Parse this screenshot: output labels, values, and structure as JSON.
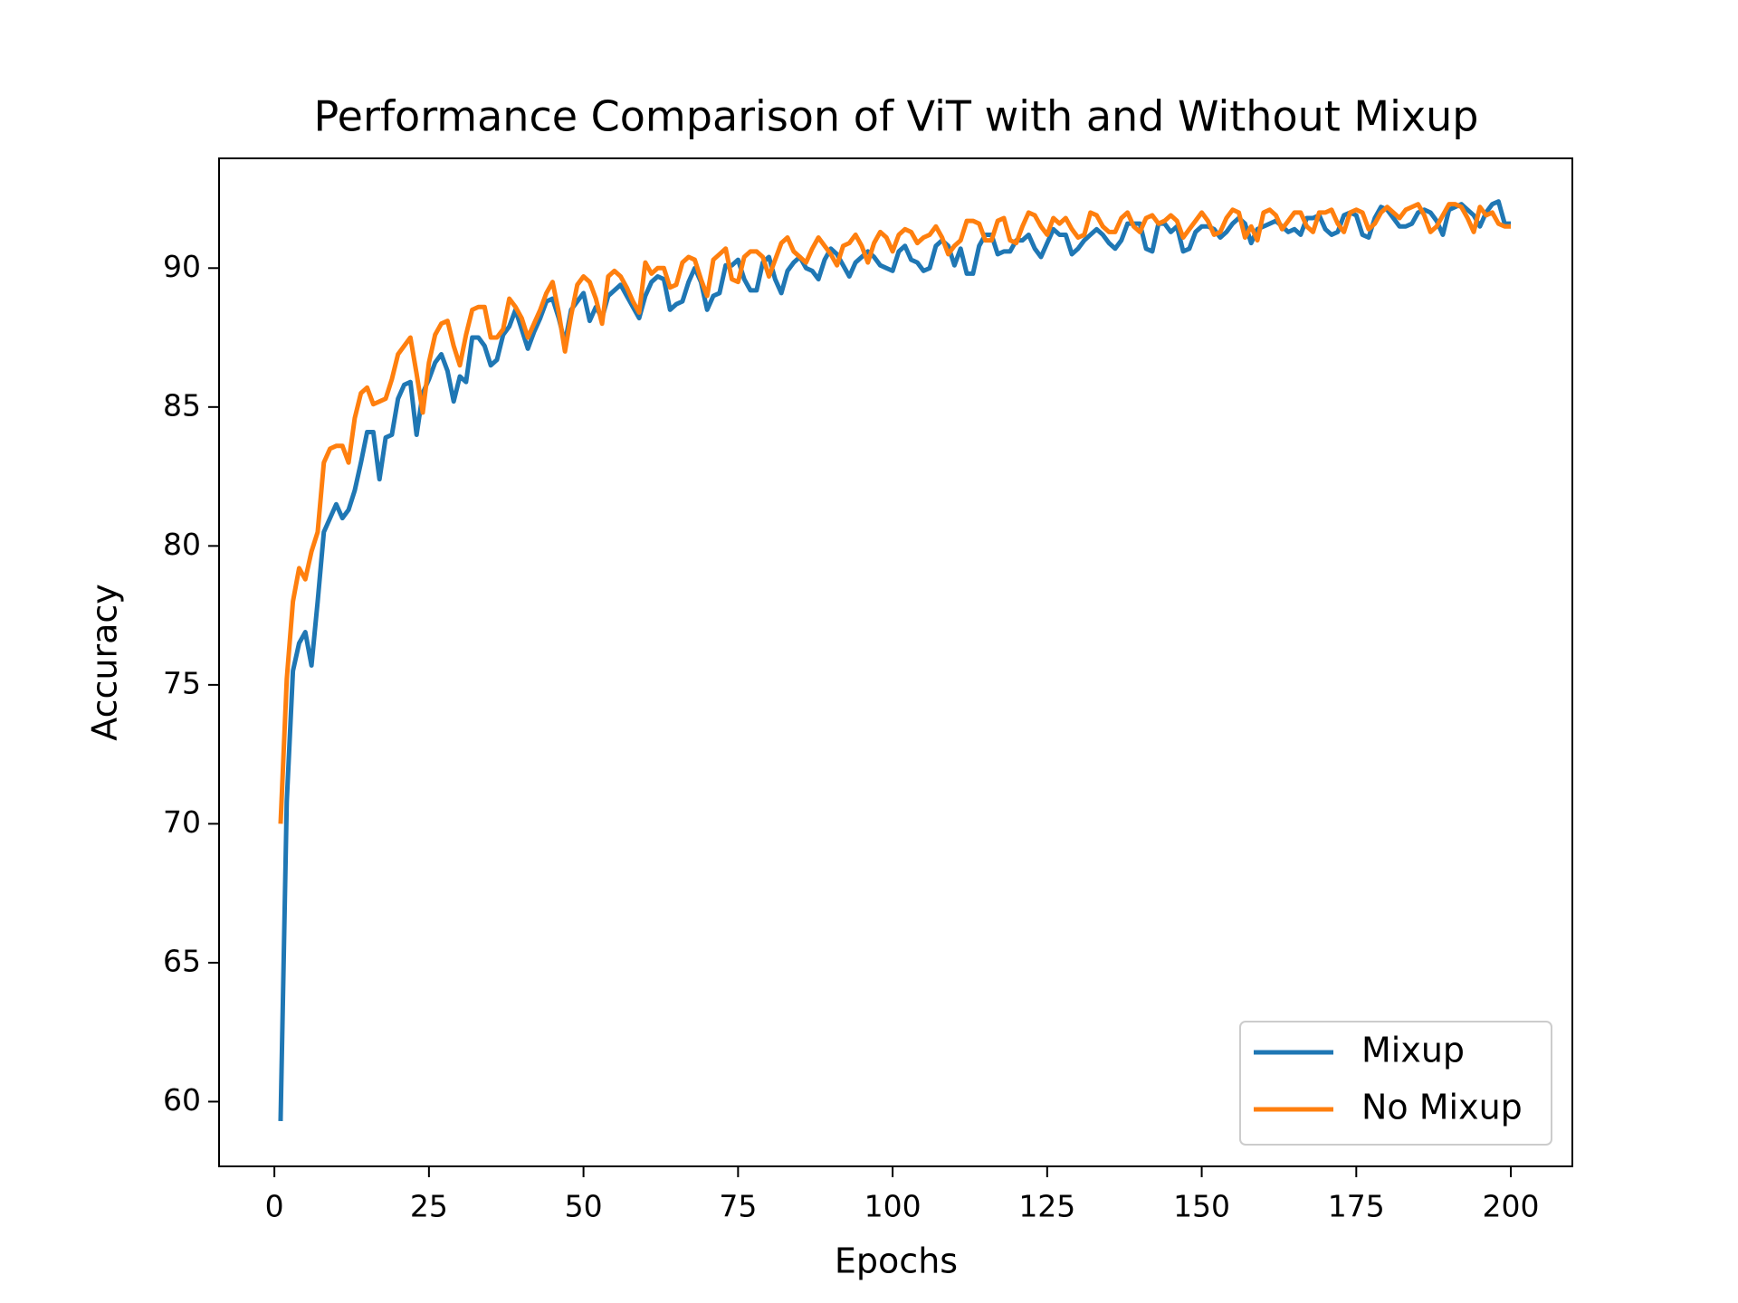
{
  "chart_data": {
    "type": "line",
    "title": "Performance Comparison of ViT with and Without Mixup",
    "x_label": "Epochs",
    "y_label": "Accuracy",
    "x": [
      1,
      2,
      3,
      4,
      5,
      6,
      7,
      8,
      9,
      10,
      11,
      12,
      13,
      14,
      15,
      16,
      17,
      18,
      19,
      20,
      21,
      22,
      23,
      24,
      25,
      26,
      27,
      28,
      29,
      30,
      31,
      32,
      33,
      34,
      35,
      36,
      37,
      38,
      39,
      40,
      41,
      42,
      43,
      44,
      45,
      46,
      47,
      48,
      49,
      50,
      51,
      52,
      53,
      54,
      55,
      56,
      57,
      58,
      59,
      60,
      61,
      62,
      63,
      64,
      65,
      66,
      67,
      68,
      69,
      70,
      71,
      72,
      73,
      74,
      75,
      76,
      77,
      78,
      79,
      80,
      81,
      82,
      83,
      84,
      85,
      86,
      87,
      88,
      89,
      90,
      91,
      92,
      93,
      94,
      95,
      96,
      97,
      98,
      99,
      100,
      101,
      102,
      103,
      104,
      105,
      106,
      107,
      108,
      109,
      110,
      111,
      112,
      113,
      114,
      115,
      116,
      117,
      118,
      119,
      120,
      121,
      122,
      123,
      124,
      125,
      126,
      127,
      128,
      129,
      130,
      131,
      132,
      133,
      134,
      135,
      136,
      137,
      138,
      139,
      140,
      141,
      142,
      143,
      144,
      145,
      146,
      147,
      148,
      149,
      150,
      151,
      152,
      153,
      154,
      155,
      156,
      157,
      158,
      159,
      160,
      161,
      162,
      163,
      164,
      165,
      166,
      167,
      168,
      169,
      170,
      171,
      172,
      173,
      174,
      175,
      176,
      177,
      178,
      179,
      180,
      181,
      182,
      183,
      184,
      185,
      186,
      187,
      188,
      189,
      190,
      191,
      192,
      193,
      194,
      195,
      196,
      197,
      198,
      199,
      200
    ],
    "series": [
      {
        "name": "Mixup",
        "color": "#1f77b4",
        "values": [
          59.3,
          70.8,
          75.5,
          76.5,
          76.9,
          75.7,
          78,
          80.5,
          81,
          81.5,
          81,
          81.3,
          82,
          83,
          84.1,
          84.1,
          82.4,
          83.9,
          84,
          85.3,
          85.8,
          85.9,
          84,
          85.5,
          86,
          86.6,
          86.9,
          86.3,
          85.2,
          86.1,
          85.9,
          87.5,
          87.5,
          87.2,
          86.5,
          86.7,
          87.6,
          87.9,
          88.5,
          87.8,
          87.1,
          87.7,
          88.2,
          88.8,
          88.9,
          88.2,
          87.3,
          88.5,
          88.8,
          89.1,
          88.1,
          88.6,
          88.2,
          89,
          89.2,
          89.4,
          89,
          88.6,
          88.2,
          89,
          89.5,
          89.7,
          89.6,
          88.5,
          88.7,
          88.8,
          89.5,
          90,
          89.5,
          88.5,
          89,
          89.1,
          90.1,
          90.1,
          90.3,
          89.6,
          89.2,
          89.2,
          90.2,
          90.4,
          89.6,
          89.1,
          89.9,
          90.2,
          90.4,
          90,
          89.9,
          89.6,
          90.3,
          90.7,
          90.5,
          90.1,
          89.7,
          90.2,
          90.4,
          90.6,
          90.4,
          90.1,
          90,
          89.9,
          90.6,
          90.8,
          90.3,
          90.2,
          89.9,
          90,
          90.8,
          91,
          90.8,
          90.1,
          90.7,
          89.8,
          89.8,
          90.8,
          91.2,
          91.2,
          90.5,
          90.6,
          90.6,
          91,
          91,
          91.2,
          90.7,
          90.4,
          90.9,
          91.4,
          91.2,
          91.2,
          90.5,
          90.7,
          91,
          91.2,
          91.4,
          91.2,
          90.9,
          90.7,
          91,
          91.6,
          91.6,
          91.6,
          90.7,
          90.6,
          91.6,
          91.6,
          91.3,
          91.5,
          90.6,
          90.7,
          91.3,
          91.5,
          91.5,
          91.4,
          91.1,
          91.3,
          91.6,
          91.8,
          91.6,
          90.9,
          91.4,
          91.5,
          91.6,
          91.7,
          91.5,
          91.3,
          91.4,
          91.2,
          91.8,
          91.8,
          91.9,
          91.4,
          91.2,
          91.3,
          91.9,
          92,
          91.9,
          91.2,
          91.1,
          91.8,
          92.2,
          92.1,
          91.8,
          91.5,
          91.5,
          91.6,
          92,
          92.1,
          92,
          91.7,
          91.2,
          92.1,
          92.2,
          92.3,
          92.1,
          91.9,
          91.5,
          92,
          92.3,
          92.4,
          91.6,
          91.6
        ]
      },
      {
        "name": "No Mixup",
        "color": "#ff7f0e",
        "values": [
          70,
          75.2,
          78,
          79.2,
          78.8,
          79.8,
          80.5,
          83,
          83.5,
          83.6,
          83.6,
          83,
          84.6,
          85.5,
          85.7,
          85.1,
          85.2,
          85.3,
          86,
          86.9,
          87.2,
          87.5,
          86.2,
          84.8,
          86.6,
          87.6,
          88,
          88.1,
          87.2,
          86.5,
          87.6,
          88.5,
          88.6,
          88.6,
          87.5,
          87.5,
          87.8,
          88.9,
          88.6,
          88.2,
          87.5,
          88,
          88.5,
          89.1,
          89.5,
          88.4,
          87,
          88.3,
          89.4,
          89.7,
          89.5,
          88.9,
          88,
          89.7,
          89.9,
          89.7,
          89.3,
          88.8,
          88.4,
          90.2,
          89.8,
          90,
          90,
          89.3,
          89.4,
          90.2,
          90.4,
          90.3,
          89.6,
          89,
          90.3,
          90.5,
          90.7,
          89.6,
          89.5,
          90.4,
          90.6,
          90.6,
          90.4,
          89.7,
          90.3,
          90.9,
          91.1,
          90.6,
          90.4,
          90.2,
          90.7,
          91.1,
          90.8,
          90.5,
          90.1,
          90.8,
          90.9,
          91.2,
          90.8,
          90.2,
          90.9,
          91.3,
          91.1,
          90.6,
          91.2,
          91.4,
          91.3,
          90.9,
          91.1,
          91.2,
          91.5,
          91.1,
          90.5,
          90.8,
          91,
          91.7,
          91.7,
          91.6,
          91,
          91,
          91.7,
          91.8,
          91,
          90.9,
          91.5,
          92,
          91.9,
          91.5,
          91.2,
          91.8,
          91.6,
          91.8,
          91.4,
          91.1,
          91.2,
          92,
          91.9,
          91.5,
          91.3,
          91.3,
          91.8,
          92,
          91.5,
          91.3,
          91.8,
          91.9,
          91.6,
          91.7,
          91.9,
          91.7,
          91.1,
          91.4,
          91.7,
          92,
          91.7,
          91.2,
          91.3,
          91.8,
          92.1,
          92,
          91.1,
          91.5,
          91,
          92,
          92.1,
          91.9,
          91.4,
          91.7,
          92,
          92,
          91.5,
          91.3,
          92,
          92,
          92.1,
          91.6,
          91.3,
          92,
          92.1,
          92,
          91.4,
          91.6,
          92,
          92.2,
          92,
          91.8,
          92.1,
          92.2,
          92.3,
          91.9,
          91.3,
          91.5,
          91.9,
          92.3,
          92.3,
          92.2,
          91.8,
          91.3,
          92.2,
          91.9,
          92,
          91.6,
          91.5,
          91.5
        ]
      }
    ],
    "xlim": [
      -8.95,
      209.95
    ],
    "ylim": [
      57.67,
      93.95
    ],
    "xticks": [
      0,
      25,
      50,
      75,
      100,
      125,
      150,
      175,
      200
    ],
    "yticks": [
      60,
      65,
      70,
      75,
      80,
      85,
      90
    ],
    "legend": "lower right"
  }
}
